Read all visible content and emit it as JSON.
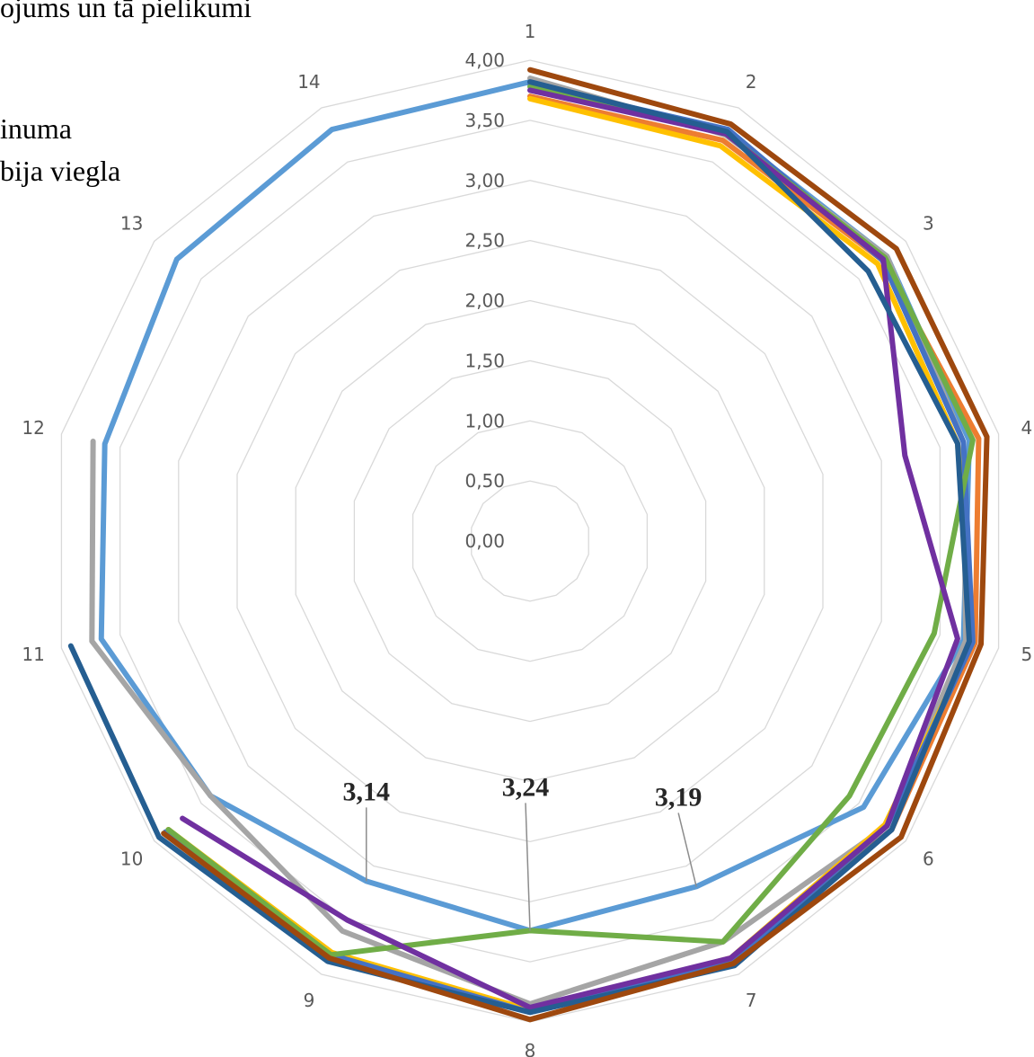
{
  "legend_fragments": [
    "ojums un tā pielikumi",
    "inuma",
    "bija viegla"
  ],
  "chart_data": {
    "type": "radar",
    "categories": [
      "1",
      "2",
      "3",
      "4",
      "5",
      "6",
      "7",
      "8",
      "9",
      "10",
      "11",
      "12",
      "13",
      "14"
    ],
    "ylim": [
      0,
      4
    ],
    "tick_labels": [
      "0,00",
      "0,50",
      "1,00",
      "1,50",
      "2,00",
      "2,50",
      "3,00",
      "3,50",
      "4,00"
    ],
    "grid": true,
    "series": [
      {
        "color": "#5B9BD5",
        "values": [
          3.82,
          3.78,
          3.8,
          3.75,
          3.7,
          3.55,
          3.19,
          3.24,
          3.14,
          3.4,
          3.66,
          3.63,
          3.76,
          3.8
        ]
      },
      {
        "color": "#ED7D31",
        "values": [
          3.7,
          3.7,
          3.75,
          3.83,
          3.8,
          3.85,
          3.88,
          3.9,
          3.82,
          3.85,
          null,
          null,
          null,
          null
        ]
      },
      {
        "color": "#A5A5A5",
        "values": [
          3.85,
          3.75,
          3.8,
          3.7,
          3.72,
          3.8,
          3.7,
          3.85,
          3.6,
          3.4,
          3.74,
          3.73,
          null,
          null
        ]
      },
      {
        "color": "#FFC000",
        "values": [
          3.68,
          3.65,
          3.7,
          3.65,
          3.78,
          3.78,
          3.85,
          3.9,
          3.8,
          3.85,
          null,
          null,
          null,
          null
        ]
      },
      {
        "color": "#4472C4",
        "values": [
          3.8,
          3.8,
          3.75,
          3.7,
          3.78,
          3.8,
          3.88,
          3.92,
          3.82,
          3.88,
          null,
          null,
          null,
          null
        ]
      },
      {
        "color": "#70AD47",
        "values": [
          3.78,
          3.76,
          3.78,
          3.78,
          3.45,
          3.4,
          3.7,
          3.24,
          3.82,
          3.85,
          null,
          null,
          null,
          null
        ]
      },
      {
        "color": "#7030A0",
        "values": [
          3.75,
          3.76,
          3.76,
          3.2,
          3.65,
          3.8,
          3.85,
          3.88,
          3.5,
          3.7,
          null,
          null,
          null,
          null
        ]
      },
      {
        "color": "#255E91",
        "values": [
          3.82,
          3.78,
          3.6,
          3.65,
          3.75,
          3.85,
          3.92,
          3.92,
          3.88,
          3.95,
          3.92,
          null,
          null,
          null
        ]
      },
      {
        "color": "#9E480E",
        "values": [
          3.92,
          3.85,
          3.9,
          3.9,
          3.85,
          3.95,
          3.9,
          3.98,
          3.85,
          3.9,
          null,
          null,
          null,
          null
        ]
      }
    ],
    "annotations": [
      {
        "text": "3,14",
        "category": "9",
        "value": 3.14
      },
      {
        "text": "3,24",
        "category": "8",
        "value": 3.24
      },
      {
        "text": "3,19",
        "category": "7",
        "value": 3.19
      }
    ]
  }
}
